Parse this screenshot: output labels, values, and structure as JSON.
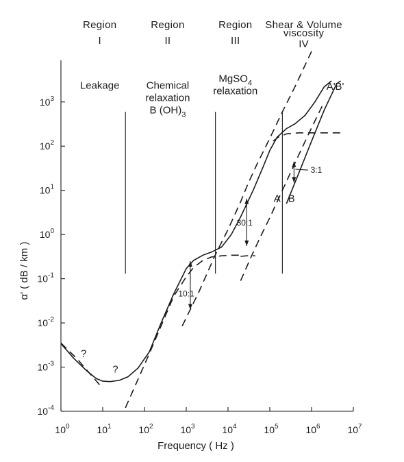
{
  "chart_data": {
    "type": "line",
    "xscale": "log",
    "yscale": "log",
    "xlim": [
      1,
      10000000
    ],
    "ylim": [
      0.0001,
      3000
    ],
    "xlabel": "Frequency  ( Hz )",
    "ylabel": "α' ( dB / km )",
    "xticks": [
      {
        "base": "10",
        "exp": "0",
        "value": 1
      },
      {
        "base": "10",
        "exp": "1",
        "value": 10
      },
      {
        "base": "10",
        "exp": "2",
        "value": 100
      },
      {
        "base": "10",
        "exp": "3",
        "value": 1000
      },
      {
        "base": "10",
        "exp": "4",
        "value": 10000
      },
      {
        "base": "10",
        "exp": "5",
        "value": 100000
      },
      {
        "base": "10",
        "exp": "6",
        "value": 1000000
      },
      {
        "base": "10",
        "exp": "7",
        "value": 10000000
      }
    ],
    "yticks": [
      {
        "base": "10",
        "exp": "-4",
        "value": 0.0001
      },
      {
        "base": "10",
        "exp": "-3",
        "value": 0.001
      },
      {
        "base": "10",
        "exp": "-2",
        "value": 0.01
      },
      {
        "base": "10",
        "exp": "-1",
        "value": 0.1
      },
      {
        "base": "10",
        "exp": "0",
        "value": 1
      },
      {
        "base": "10",
        "exp": "1",
        "value": 10
      },
      {
        "base": "10",
        "exp": "2",
        "value": 100
      },
      {
        "base": "10",
        "exp": "3",
        "value": 1000
      }
    ],
    "regions": [
      {
        "line1": "Region",
        "line2": "I",
        "x": 8.5
      },
      {
        "line1": "Region",
        "line2": "II",
        "x": 360
      },
      {
        "line1": "Region",
        "line2": "III",
        "x": 15000
      },
      {
        "line1": "Shear & Volume",
        "line1b": "viscosity",
        "line2": "IV",
        "x": 650000
      }
    ],
    "region_boundaries": [
      {
        "x": 35,
        "y_low": 0.13,
        "y_high": 600
      },
      {
        "x": 5000,
        "y_low": 0.13,
        "y_high": 600
      },
      {
        "x": 200000,
        "y_low": 0.13,
        "y_high": 600
      }
    ],
    "annotations": [
      {
        "key": "leakage",
        "lines": [
          "Leakage"
        ],
        "x": 8.5,
        "y": 2000
      },
      {
        "key": "boric",
        "lines": [
          "Chemical",
          "relaxation"
        ],
        "formula": [
          "B (OH)",
          "3"
        ],
        "x": 360,
        "y": 2000
      },
      {
        "key": "mgso4",
        "lines": [
          "relaxation"
        ],
        "formula": [
          "MgSO",
          "4"
        ],
        "x": 15000,
        "y": 1500
      },
      {
        "key": "q1",
        "lines": [
          "?"
        ],
        "x": 3.5,
        "y": 0.0017
      },
      {
        "key": "q2",
        "lines": [
          "?"
        ],
        "x": 20,
        "y": 0.00075
      },
      {
        "key": "labelA",
        "lines": [
          "A"
        ],
        "x": 150000,
        "y": 5.5
      },
      {
        "key": "labelB",
        "lines": [
          "B"
        ],
        "x": 330000,
        "y": 5.5
      },
      {
        "key": "labelA2",
        "lines": [
          "A'"
        ],
        "x": 2900000,
        "y": 1900
      },
      {
        "key": "labelB2",
        "lines": [
          "B'"
        ],
        "x": 4700000,
        "y": 1900
      }
    ],
    "ratio_markers": [
      {
        "label": "10:1",
        "x": 1250,
        "y_top": 0.25,
        "y_bottom": 0.02,
        "label_x": 1000,
        "label_y": 0.04
      },
      {
        "label": "30:1",
        "x": 28000,
        "y_top": 6.5,
        "y_bottom": 0.55,
        "label_x": 25000,
        "label_y": 1.6
      },
      {
        "label": "3:1",
        "x": 380000,
        "y_top": 45,
        "y_bottom": 15,
        "label_x": 950000,
        "label_y": 25
      }
    ],
    "series": [
      {
        "style": "solid",
        "x": [
          1.0,
          2.0,
          4.0,
          7.0,
          10.0,
          15.0,
          25.0,
          40.0,
          70.0,
          130.0,
          250.0,
          500.0,
          1000.0,
          1500.0,
          2500.0,
          4000.0,
          7000.0,
          12000.0,
          20000.0,
          40000.0,
          70000.0,
          100000.0,
          150000.0,
          250000.0,
          400000.0,
          700000.0,
          1200000.0,
          2000000.0,
          3000000.0
        ],
        "y": [
          0.0034,
          0.0016,
          0.00085,
          0.00055,
          0.00048,
          0.00047,
          0.0005,
          0.0006,
          0.00095,
          0.0022,
          0.01,
          0.045,
          0.17,
          0.26,
          0.34,
          0.4,
          0.52,
          1.0,
          2.5,
          10.0,
          35.0,
          80.0,
          160.0,
          250.0,
          320.0,
          500.0,
          1000.0,
          2200.0,
          3000.0
        ]
      },
      {
        "style": "dashed",
        "x": [
          1.0,
          2.5,
          5.0,
          10.0
        ],
        "y": [
          0.0035,
          0.0015,
          0.0007,
          0.00033
        ]
      },
      {
        "style": "dashed",
        "x": [
          35,
          130,
          500,
          1000,
          1500,
          2500,
          4000,
          7000,
          12000,
          20000
        ],
        "y": [
          0.00012,
          0.002,
          0.04,
          0.11,
          0.18,
          0.26,
          0.31,
          0.33,
          0.34,
          0.34
        ]
      },
      {
        "style": "dashed",
        "x": [
          800,
          2000,
          5000,
          10000,
          20000,
          30000,
          50000,
          100000,
          200000,
          400000,
          1000000
        ],
        "y": [
          0.0085,
          0.05,
          0.35,
          1.3,
          5.5,
          14,
          40,
          150,
          600,
          2200,
          14000
        ]
      },
      {
        "style": "dashed",
        "x": [
          20000,
          28000,
          45000
        ],
        "y": [
          0.32,
          0.33,
          0.33
        ]
      },
      {
        "style": "dashed",
        "x": [
          20000,
          35000,
          60000,
          100000,
          200000,
          500000,
          1000000,
          2000000
        ],
        "y": [
          0.09,
          0.3,
          0.9,
          2.4,
          10,
          65,
          260,
          1000
        ]
      },
      {
        "style": "dashed",
        "x": [
          120000,
          160000,
          250000,
          500000,
          1000000,
          2000000,
          5000000,
          6000000
        ],
        "y": [
          130,
          160,
          190,
          200,
          200,
          200,
          200,
          200
        ]
      },
      {
        "style": "solid",
        "x": [
          250000,
          500000,
          1000000,
          2000000,
          4000000,
          5000000
        ],
        "y": [
          5,
          25,
          130,
          650,
          2600,
          3000
        ]
      }
    ]
  }
}
